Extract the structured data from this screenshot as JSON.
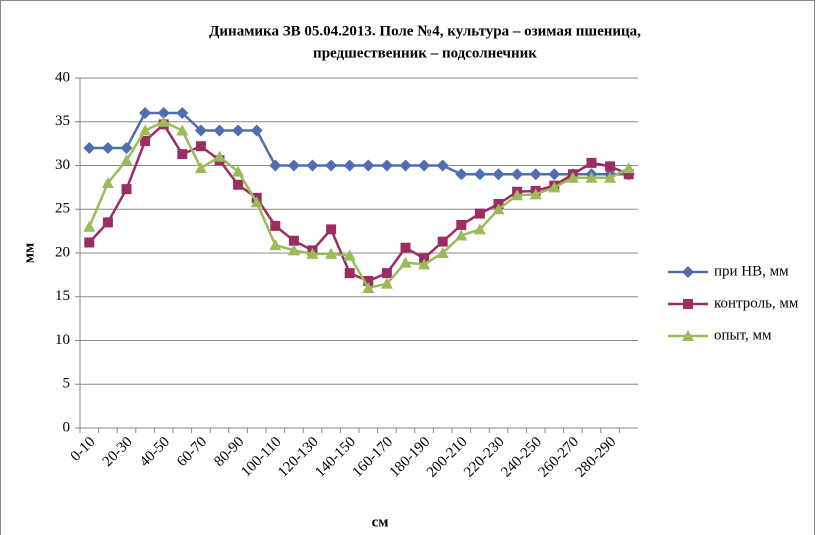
{
  "chart_data": {
    "type": "line",
    "title": [
      "Динамика ЗВ 05.04.2013. Поле №4, культура – озимая пшеница,",
      "предшественник – подсолнечник"
    ],
    "xlabel": "см",
    "ylabel": "мм",
    "categories": [
      "0-10",
      null,
      "20-30",
      null,
      "40-50",
      null,
      "60-70",
      null,
      "80-90",
      null,
      "100-110",
      null,
      "120-130",
      null,
      "140-150",
      null,
      "160-170",
      null,
      "180-190",
      null,
      "200-210",
      null,
      "220-230",
      null,
      "240-250",
      null,
      "260-270",
      null,
      "280-290",
      null
    ],
    "series": [
      {
        "name": "при НВ, мм",
        "color": "#4F6EB0",
        "marker": "diamond",
        "values": [
          32,
          32,
          32,
          36,
          36,
          36,
          34,
          34,
          34,
          34,
          30,
          30,
          30,
          30,
          30,
          30,
          30,
          30,
          30,
          30,
          29,
          29,
          29,
          29,
          29,
          29,
          29,
          29,
          29,
          29
        ]
      },
      {
        "name": "контроль, мм",
        "color": "#9B2D62",
        "marker": "square",
        "values": [
          21.2,
          23.5,
          27.3,
          32.8,
          34.7,
          31.3,
          32.2,
          30.6,
          27.8,
          26.3,
          23.1,
          21.4,
          20.3,
          22.7,
          17.7,
          16.8,
          17.7,
          20.6,
          19.4,
          21.3,
          23.2,
          24.5,
          25.6,
          27,
          27.1,
          27.7,
          29,
          30.3,
          29.9,
          29
        ]
      },
      {
        "name": "опыт, мм",
        "color": "#9BBB59",
        "marker": "triangle",
        "values": [
          23,
          28,
          30.6,
          34,
          35,
          34,
          29.7,
          31,
          29.3,
          25.8,
          20.9,
          20.3,
          19.9,
          19.9,
          19.7,
          16,
          16.5,
          18.9,
          18.7,
          20,
          22,
          22.7,
          25,
          26.6,
          26.7,
          27.5,
          28.6,
          28.6,
          28.6,
          29.7
        ]
      }
    ],
    "ylim": [
      0,
      40
    ],
    "yticks": [
      0,
      5,
      10,
      15,
      20,
      25,
      30,
      35,
      40
    ],
    "grid": true,
    "legend": "right"
  }
}
